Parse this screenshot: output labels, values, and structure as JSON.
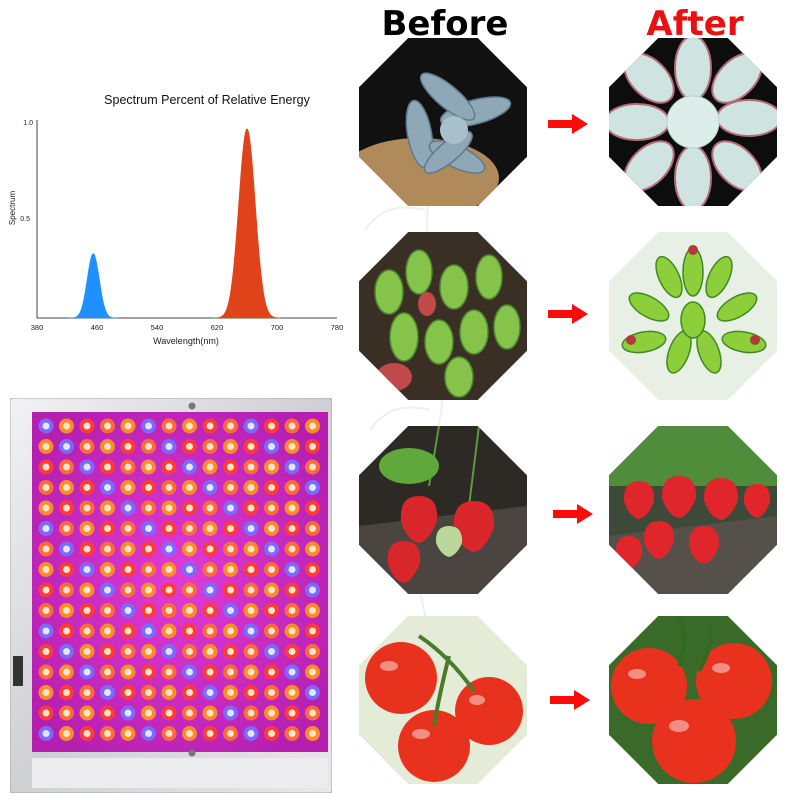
{
  "headers": {
    "before": "Before",
    "after": "After"
  },
  "colors": {
    "before_header": "#000000",
    "after_header": "#e81010",
    "arrow": "#ff0a0a"
  },
  "chart_data": {
    "type": "area",
    "title": "Spectrum  Percent of Relative Energy",
    "xlabel": "Wavelength(nm)",
    "ylabel": "Spectrum",
    "xlim": [
      380,
      780
    ],
    "ylim": [
      0,
      1.0
    ],
    "x_ticks": [
      "380",
      "460",
      "540",
      "620",
      "700",
      "780"
    ],
    "y_ticks": [
      "0.5",
      "1.0"
    ],
    "grid": false,
    "series": [
      {
        "peak_nm": 455,
        "width_nm": 8,
        "amplitude": 0.33,
        "color": "#1e90ff"
      },
      {
        "peak_nm": 660,
        "width_nm": 11,
        "amplitude": 0.97,
        "color": "#e0431a"
      }
    ]
  },
  "panel": {
    "rows": 16,
    "cols": 14,
    "led_colors": [
      "#ff6a3a",
      "#ff8a2a",
      "#ff3a3a",
      "#7a6aff"
    ]
  },
  "comparisons": [
    {
      "before_icon": "succulent-rosette-small",
      "after_icon": "succulent-rosette-large"
    },
    {
      "before_icon": "jelly-bean-succulent-small",
      "after_icon": "jelly-bean-succulent-large"
    },
    {
      "before_icon": "strawberries-few",
      "after_icon": "strawberries-many"
    },
    {
      "before_icon": "tomatoes-few",
      "after_icon": "tomatoes-many"
    }
  ]
}
